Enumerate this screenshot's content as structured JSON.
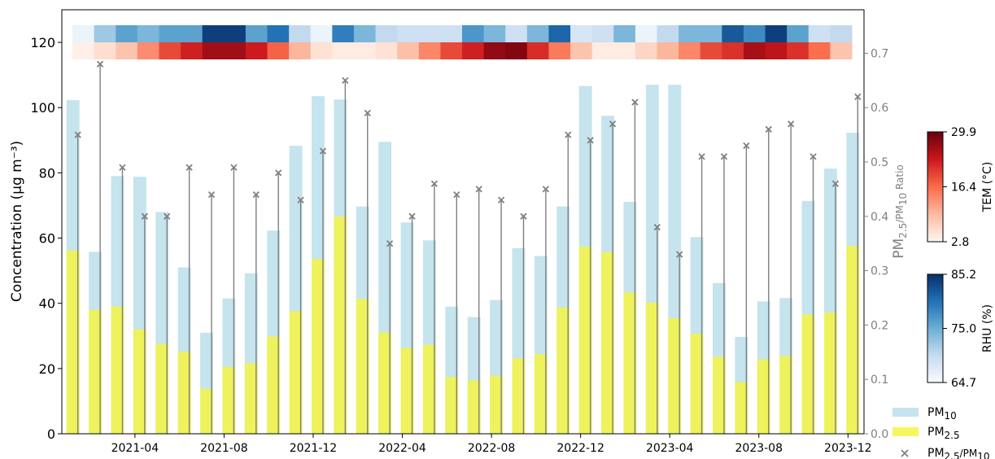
{
  "chart_data": {
    "type": "bar",
    "categories": [
      "2021-01",
      "2021-02",
      "2021-03",
      "2021-04",
      "2021-05",
      "2021-06",
      "2021-07",
      "2021-08",
      "2021-09",
      "2021-10",
      "2021-11",
      "2021-12",
      "2022-01",
      "2022-02",
      "2022-03",
      "2022-04",
      "2022-05",
      "2022-06",
      "2022-07",
      "2022-08",
      "2022-09",
      "2022-10",
      "2022-11",
      "2022-12",
      "2023-01",
      "2023-02",
      "2023-03",
      "2023-04",
      "2023-05",
      "2023-06",
      "2023-07",
      "2023-08",
      "2023-09",
      "2023-10",
      "2023-11",
      "2023-12"
    ],
    "x_tick_labels": [
      "2021-04",
      "2021-08",
      "2021-12",
      "2022-04",
      "2022-08",
      "2022-12",
      "2023-04",
      "2023-08",
      "2023-12"
    ],
    "x_tick_indices": [
      3,
      7,
      11,
      15,
      19,
      23,
      27,
      31,
      35
    ],
    "series": [
      {
        "name": "PM10",
        "color": "#add8e6",
        "values": [
          102.3,
          55.8,
          79,
          78.8,
          68,
          51,
          31,
          41.5,
          49.2,
          62.3,
          88.3,
          103.5,
          102.5,
          69.7,
          89.5,
          64.8,
          59.3,
          39,
          35.8,
          41,
          56.9,
          54.5,
          69.7,
          106.6,
          97.5,
          71.1,
          107,
          107,
          60.3,
          46.2,
          29.7,
          40.6,
          41.6,
          71.4,
          81.3,
          92.3
        ]
      },
      {
        "name": "PM2.5",
        "color": "#f5f542",
        "values": [
          56.2,
          38,
          39,
          32,
          27.5,
          25.2,
          13.8,
          20.5,
          21.6,
          29.8,
          37.6,
          53.6,
          66.6,
          41.3,
          31.1,
          26.3,
          27.3,
          17.4,
          16.4,
          17.8,
          23.1,
          24.4,
          38.7,
          57.3,
          55.7,
          43.3,
          40.2,
          35.4,
          30.7,
          23.6,
          15.8,
          22.8,
          23.9,
          36.6,
          37.2,
          57.6
        ]
      },
      {
        "name": "PM2.5/PM10",
        "color": "#808080",
        "axis": "right",
        "values": [
          0.55,
          0.68,
          0.49,
          0.4,
          0.4,
          0.49,
          0.44,
          0.49,
          0.44,
          0.48,
          0.43,
          0.52,
          0.65,
          0.59,
          0.35,
          0.4,
          0.46,
          0.44,
          0.45,
          0.43,
          0.4,
          0.45,
          0.55,
          0.54,
          0.57,
          0.61,
          0.38,
          0.33,
          0.51,
          0.51,
          0.53,
          0.56,
          0.57,
          0.51,
          0.46,
          0.62
        ]
      }
    ],
    "heatmap_tem": [
      3.5,
      5.5,
      8.5,
      13.5,
      19,
      22.5,
      26,
      26,
      23,
      17,
      10,
      5,
      4,
      4,
      5,
      9,
      14,
      19,
      22.5,
      27,
      28,
      21.5,
      15,
      8.5,
      4,
      4,
      6.5,
      10,
      14,
      19,
      21,
      25.5,
      24,
      21,
      16,
      8.5
    ],
    "heatmap_rhu": [
      66,
      72,
      76,
      74,
      76,
      76,
      84,
      84,
      76,
      80,
      70,
      66,
      79,
      74,
      70,
      69,
      69,
      69,
      77,
      74,
      69,
      74,
      81,
      68,
      69,
      74,
      66,
      70,
      74,
      74,
      82,
      78,
      84,
      76,
      69,
      70
    ],
    "y_left": {
      "label": "Concentration (μg m⁻³)",
      "lim": [
        0,
        130
      ],
      "ticks": [
        "0",
        "20",
        "40",
        "60",
        "80",
        "100",
        "120"
      ]
    },
    "y_right": {
      "label": "PM2.5/PM10 Ratio",
      "lim": [
        0,
        0.78
      ],
      "ticks": [
        "0.0",
        "0.1",
        "0.2",
        "0.3",
        "0.4",
        "0.5",
        "0.6",
        "0.7"
      ]
    },
    "colorbar_tem": {
      "label": "TEM (°C)",
      "min": 2.8,
      "max": 29.9,
      "ticks": [
        "2.8",
        "16.4",
        "29.9"
      ],
      "colormap": "Reds"
    },
    "colorbar_rhu": {
      "label": "RHU (%)",
      "min": 64.7,
      "max": 85.2,
      "ticks": [
        "64.7",
        "75.0",
        "85.2"
      ],
      "colormap": "Blues"
    },
    "legend": {
      "placement": "lower-right",
      "items": [
        {
          "label": "PM",
          "sub": "10"
        },
        {
          "label": "PM",
          "sub": "2.5"
        },
        {
          "label": "PM",
          "sub": "2.5",
          "suffix": "/PM",
          "sub2": "10"
        }
      ]
    },
    "grid": false
  }
}
